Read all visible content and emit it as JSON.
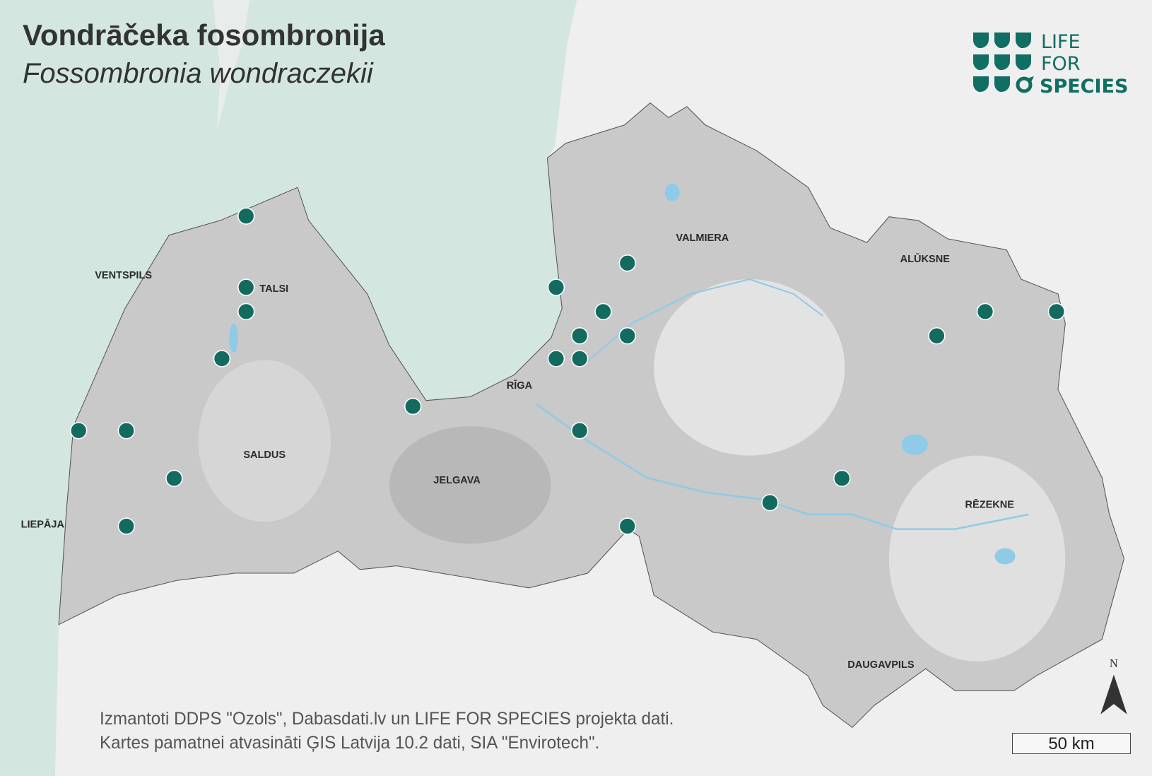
{
  "title": "Vondrāčeka fosombronija",
  "subtitle": "Fossombronia wondraczekii",
  "logo": {
    "line1": "LIFE",
    "line2": "FOR",
    "line3": "SPECIES",
    "color": "#106e63"
  },
  "cities": [
    {
      "name": "VENTSPILS"
    },
    {
      "name": "TALSI"
    },
    {
      "name": "VALMIERA"
    },
    {
      "name": "ALŪKSNE"
    },
    {
      "name": "RĪGA"
    },
    {
      "name": "SALDUS"
    },
    {
      "name": "JELGAVA"
    },
    {
      "name": "RĒZEKNE"
    },
    {
      "name": "LIEPĀJA"
    },
    {
      "name": "DAUGAVPILS"
    }
  ],
  "credits": {
    "line1": "Izmantoti DDPS \"Ozols\", Dabasdati.lv un LIFE FOR SPECIES projekta dati.",
    "line2": "Kartes pamatnei atvasināti ĢIS Latvija 10.2 dati, SIA \"Envirotech\"."
  },
  "north_label": "N",
  "scale_label": "50 km",
  "colors": {
    "sea": "#d3e6df",
    "land": "#c9c9c9",
    "marker": "#136b5f",
    "background": "#efefef",
    "water": "#8fcbe6"
  },
  "occurrence_count": 23
}
